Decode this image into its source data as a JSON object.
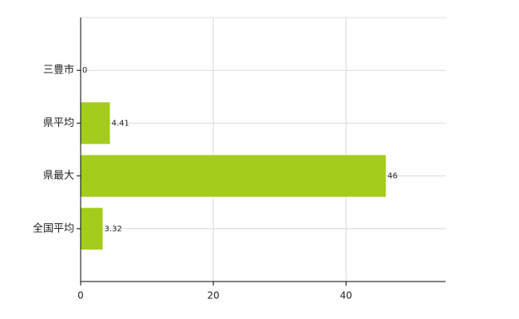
{
  "chart_data": {
    "type": "bar",
    "orientation": "horizontal",
    "categories": [
      "三豊市",
      "県平均",
      "県最大",
      "全国平均"
    ],
    "values": [
      0,
      4.41,
      46,
      3.32
    ],
    "color": "#a3cc1c",
    "xlim": [
      0,
      55
    ],
    "xticks": [
      0,
      20,
      40
    ],
    "grid": true
  }
}
